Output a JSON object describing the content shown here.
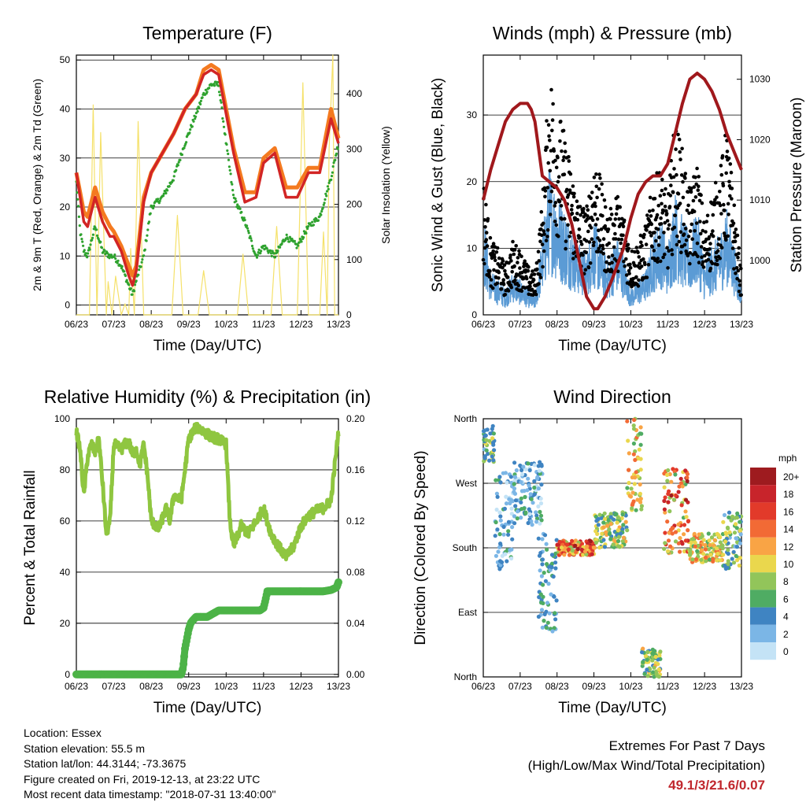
{
  "chart_data": [
    {
      "id": "temperature",
      "type": "line",
      "title": "Temperature (F)",
      "xlabel": "Time (Day/UTC)",
      "ylabel": "2m & 9m T (Red, Orange) & 2m Td (Green)",
      "ylabel_right": "Solar Insolation (Yellow)",
      "x_ticks": [
        "06/23",
        "07/23",
        "08/23",
        "09/23",
        "10/23",
        "11/23",
        "12/23",
        "13/23"
      ],
      "xlim": [
        6,
        13
      ],
      "ylim": [
        -2,
        51
      ],
      "y_ticks": [
        0,
        10,
        20,
        30,
        40,
        50
      ],
      "ylim_right": [
        0,
        470
      ],
      "y_ticks_right": [
        0,
        100,
        200,
        300,
        400
      ],
      "series": [
        {
          "color": "#2fa22f",
          "x": [
            6.0,
            6.1,
            6.2,
            6.3,
            6.5,
            6.7,
            6.9,
            7.0,
            7.2,
            7.4,
            7.5,
            7.6,
            7.8,
            8.0,
            8.3,
            8.6,
            8.9,
            9.2,
            9.4,
            9.6,
            9.8,
            10.0,
            10.2,
            10.5,
            10.8,
            11.0,
            11.3,
            11.6,
            11.9,
            12.2,
            12.5,
            12.8,
            13.0
          ],
          "y": [
            25,
            15,
            11,
            10,
            16,
            11,
            10,
            10,
            8,
            4,
            2,
            5,
            10,
            20,
            22,
            26,
            33,
            39,
            43,
            45,
            45,
            33,
            22,
            17,
            10,
            12,
            10,
            14,
            12,
            16,
            18,
            26,
            33
          ]
        },
        {
          "color": "#f47a20",
          "x": [
            6.0,
            6.1,
            6.2,
            6.3,
            6.5,
            6.7,
            6.9,
            7.0,
            7.2,
            7.4,
            7.5,
            7.6,
            7.8,
            8.0,
            8.3,
            8.6,
            8.9,
            9.2,
            9.4,
            9.6,
            9.8,
            10.0,
            10.2,
            10.5,
            10.8,
            11.0,
            11.3,
            11.6,
            11.9,
            12.2,
            12.5,
            12.8,
            13.0
          ],
          "y": [
            27,
            23,
            19,
            18,
            24,
            19,
            16,
            15,
            12,
            8,
            6,
            8,
            22,
            27,
            31,
            35,
            40,
            43,
            48,
            49,
            48,
            40,
            32,
            23,
            23,
            30,
            32,
            24,
            24,
            28,
            28,
            40,
            34
          ]
        },
        {
          "color": "#d22525",
          "x": [
            6.0,
            6.1,
            6.2,
            6.3,
            6.5,
            6.7,
            6.9,
            7.0,
            7.2,
            7.4,
            7.5,
            7.6,
            7.8,
            8.0,
            8.3,
            8.6,
            8.9,
            9.2,
            9.4,
            9.6,
            9.8,
            10.0,
            10.2,
            10.5,
            10.8,
            11.0,
            11.3,
            11.6,
            11.9,
            12.2,
            12.5,
            12.8,
            13.0
          ],
          "y": [
            27,
            22,
            17,
            16,
            22,
            17,
            14,
            14,
            11,
            6,
            4,
            7,
            21,
            27,
            31,
            35,
            40,
            43,
            47,
            48,
            47,
            39,
            31,
            21,
            22,
            29,
            31,
            22,
            22,
            27,
            27,
            38,
            33
          ]
        },
        {
          "color": "#f5e16a",
          "x": [
            6.0,
            6.35,
            6.45,
            6.55,
            6.65,
            6.8,
            6.85,
            6.95,
            7.05,
            7.2,
            7.3,
            7.4,
            7.45,
            7.55,
            7.65,
            7.8,
            8.55,
            8.7,
            8.85,
            9.25,
            9.4,
            9.55,
            10.3,
            10.45,
            10.6,
            11.2,
            11.35,
            11.5,
            11.9,
            12.05,
            12.2,
            12.5,
            12.6,
            12.7,
            12.75,
            12.85,
            12.9,
            13.0
          ],
          "y2": [
            0,
            0,
            380,
            0,
            330,
            0,
            60,
            0,
            70,
            0,
            20,
            0,
            120,
            0,
            350,
            0,
            0,
            180,
            0,
            0,
            80,
            0,
            0,
            110,
            0,
            0,
            160,
            0,
            0,
            420,
            0,
            0,
            150,
            0,
            300,
            470,
            0,
            0
          ]
        }
      ]
    },
    {
      "id": "winds",
      "type": "line",
      "title": "Winds (mph) & Pressure (mb)",
      "xlabel": "Time (Day/UTC)",
      "ylabel": "Sonic Wind & Gust (Blue, Black)",
      "ylabel_right": "Station Pressure (Maroon)",
      "x_ticks": [
        "06/23",
        "07/23",
        "08/23",
        "09/23",
        "10/23",
        "11/23",
        "12/23",
        "13/23"
      ],
      "xlim": [
        6,
        13
      ],
      "ylim": [
        0,
        39
      ],
      "y_ticks": [
        0,
        10,
        20,
        30
      ],
      "ylim_right": [
        991,
        1034
      ],
      "y_ticks_right": [
        1000,
        1010,
        1020,
        1030
      ],
      "series": [
        {
          "color": "#5b9bd5",
          "x": [
            6.0,
            6.2,
            6.4,
            6.6,
            6.8,
            7.0,
            7.2,
            7.4,
            7.6,
            7.8,
            8.0,
            8.2,
            8.4,
            8.6,
            8.8,
            9.0,
            9.2,
            9.4,
            9.6,
            9.8,
            10.0,
            10.2,
            10.4,
            10.6,
            10.8,
            11.0,
            11.2,
            11.4,
            11.6,
            11.8,
            12.0,
            12.2,
            12.4,
            12.6,
            12.8,
            13.0
          ],
          "y": [
            12,
            5,
            4,
            3,
            5,
            4,
            3,
            2,
            9,
            17,
            14,
            12,
            10,
            8,
            7,
            11,
            8,
            6,
            9,
            7,
            3,
            4,
            5,
            9,
            11,
            8,
            14,
            11,
            9,
            12,
            6,
            8,
            9,
            12,
            8,
            3
          ]
        },
        {
          "color": "#000000",
          "x": [
            6.0,
            6.2,
            6.4,
            6.6,
            6.8,
            7.0,
            7.2,
            7.4,
            7.6,
            7.8,
            8.0,
            8.2,
            8.4,
            8.6,
            8.8,
            9.0,
            9.2,
            9.4,
            9.6,
            9.8,
            10.0,
            10.2,
            10.4,
            10.6,
            10.8,
            11.0,
            11.2,
            11.4,
            11.6,
            11.8,
            12.0,
            12.2,
            12.4,
            12.6,
            12.8,
            13.0
          ],
          "y": [
            17,
            9,
            8,
            6,
            9,
            8,
            6,
            5,
            14,
            30,
            26,
            22,
            18,
            14,
            13,
            20,
            16,
            12,
            15,
            13,
            8,
            9,
            11,
            16,
            18,
            14,
            24,
            20,
            15,
            19,
            11,
            15,
            17,
            23,
            14,
            5
          ]
        },
        {
          "color": "#a0181c",
          "x": [
            6.0,
            6.2,
            6.4,
            6.6,
            6.8,
            7.0,
            7.2,
            7.3,
            7.4,
            7.6,
            7.8,
            8.0,
            8.2,
            8.4,
            8.6,
            8.8,
            9.0,
            9.1,
            9.3,
            9.5,
            9.8,
            10.0,
            10.2,
            10.4,
            10.6,
            10.8,
            11.0,
            11.2,
            11.4,
            11.6,
            11.8,
            12.0,
            12.2,
            12.4,
            12.6,
            12.8,
            13.0
          ],
          "y2": [
            1010,
            1015,
            1019,
            1023,
            1025,
            1026,
            1026,
            1025,
            1023,
            1014,
            1013,
            1012,
            1010,
            1006,
            1000,
            994,
            992,
            992,
            994,
            997,
            1002,
            1007,
            1011,
            1013,
            1014,
            1014,
            1016,
            1021,
            1026,
            1030,
            1031,
            1030,
            1028,
            1025,
            1021,
            1018,
            1015
          ]
        }
      ]
    },
    {
      "id": "rh",
      "type": "line",
      "title": "Relative Humidity (%) & Precipitation (in)",
      "xlabel": "Time (Day/UTC)",
      "ylabel": "Percent & Total Rainfall",
      "x_ticks": [
        "06/23",
        "07/23",
        "08/23",
        "09/23",
        "10/23",
        "11/23",
        "12/23",
        "13/23"
      ],
      "xlim": [
        6,
        13
      ],
      "ylim": [
        -1,
        100
      ],
      "y_ticks": [
        0,
        20,
        40,
        60,
        80,
        100
      ],
      "ylim_right": [
        -0.002,
        0.2
      ],
      "y_ticks_right": [
        "0.00",
        "0.04",
        "0.08",
        "0.12",
        "0.16",
        "0.20"
      ],
      "series": [
        {
          "color": "#8fc640",
          "x": [
            6.0,
            6.1,
            6.2,
            6.3,
            6.4,
            6.5,
            6.6,
            6.7,
            6.8,
            6.9,
            7.0,
            7.1,
            7.2,
            7.3,
            7.4,
            7.5,
            7.6,
            7.7,
            7.8,
            7.9,
            8.0,
            8.2,
            8.4,
            8.5,
            8.6,
            8.8,
            9.0,
            9.2,
            9.4,
            9.6,
            9.8,
            10.0,
            10.1,
            10.2,
            10.4,
            10.6,
            10.8,
            11.0,
            11.2,
            11.4,
            11.6,
            11.8,
            12.0,
            12.2,
            12.4,
            12.6,
            12.8,
            13.0
          ],
          "y": [
            95,
            88,
            70,
            85,
            90,
            87,
            92,
            75,
            55,
            60,
            90,
            89,
            88,
            90,
            91,
            86,
            88,
            82,
            90,
            78,
            60,
            57,
            65,
            60,
            70,
            68,
            92,
            97,
            95,
            93,
            92,
            90,
            60,
            50,
            58,
            55,
            60,
            65,
            55,
            50,
            46,
            50,
            58,
            62,
            64,
            65,
            68,
            95
          ]
        },
        {
          "color": "#4cb347",
          "x": [
            6.0,
            6.5,
            7.0,
            7.5,
            8.0,
            8.5,
            8.8,
            8.85,
            8.9,
            9.0,
            9.05,
            9.1,
            9.2,
            9.3,
            9.5,
            9.8,
            10.0,
            10.3,
            10.6,
            10.9,
            11.0,
            11.05,
            11.1,
            11.3,
            11.6,
            11.8,
            12.0,
            12.3,
            12.6,
            12.8,
            12.95,
            13.0
          ],
          "y2": [
            0,
            0,
            0,
            0,
            0,
            0,
            0,
            0.005,
            0.02,
            0.035,
            0.04,
            0.042,
            0.045,
            0.045,
            0.045,
            0.05,
            0.05,
            0.05,
            0.05,
            0.05,
            0.052,
            0.058,
            0.065,
            0.065,
            0.065,
            0.065,
            0.065,
            0.065,
            0.065,
            0.066,
            0.068,
            0.072
          ]
        }
      ]
    },
    {
      "id": "wind_direction",
      "type": "scatter",
      "title": "Wind Direction",
      "xlabel": "Time (Day/UTC)",
      "ylabel": "Direction (Colored By Speed)",
      "x_ticks": [
        "06/23",
        "07/23",
        "08/23",
        "09/23",
        "10/23",
        "11/23",
        "12/23",
        "13/23"
      ],
      "xlim": [
        6,
        13
      ],
      "y_ticks": [
        "North",
        "West",
        "South",
        "East",
        "North"
      ],
      "ylim": [
        0,
        360
      ],
      "colorbar": {
        "unit": "mph",
        "labels": [
          "20+",
          "18",
          "16",
          "14",
          "12",
          "10",
          "8",
          "6",
          "4",
          "2",
          "0"
        ],
        "colors": [
          "#9e1b1f",
          "#c8242b",
          "#e23a2a",
          "#f26a35",
          "#f9a445",
          "#ead74d",
          "#92c55a",
          "#4fac63",
          "#3f84c2",
          "#7bb6e6",
          "#c4e3f6"
        ]
      },
      "clusters": [
        {
          "x": [
            6.0,
            6.3
          ],
          "dir": [
            300,
            350
          ],
          "speed": [
            2,
            10
          ]
        },
        {
          "x": [
            6.3,
            6.8
          ],
          "dir": [
            150,
            290
          ],
          "speed": [
            0,
            6
          ]
        },
        {
          "x": [
            6.8,
            7.6
          ],
          "dir": [
            210,
            300
          ],
          "speed": [
            0,
            6
          ]
        },
        {
          "x": [
            7.5,
            8.0
          ],
          "dir": [
            60,
            200
          ],
          "speed": [
            2,
            7
          ]
        },
        {
          "x": [
            8.0,
            9.0
          ],
          "dir": [
            170,
            190
          ],
          "speed": [
            8,
            20
          ]
        },
        {
          "x": [
            9.0,
            9.9
          ],
          "dir": [
            180,
            230
          ],
          "speed": [
            4,
            12
          ]
        },
        {
          "x": [
            9.9,
            10.3
          ],
          "dir": [
            230,
            360
          ],
          "speed": [
            6,
            14
          ]
        },
        {
          "x": [
            10.3,
            10.8
          ],
          "dir": [
            0,
            40
          ],
          "speed": [
            4,
            12
          ]
        },
        {
          "x": [
            10.9,
            11.6
          ],
          "dir": [
            170,
            290
          ],
          "speed": [
            6,
            20
          ]
        },
        {
          "x": [
            11.6,
            12.5
          ],
          "dir": [
            160,
            200
          ],
          "speed": [
            6,
            14
          ]
        },
        {
          "x": [
            12.5,
            13.0
          ],
          "dir": [
            150,
            230
          ],
          "speed": [
            2,
            10
          ]
        }
      ]
    }
  ],
  "footer": {
    "location": "Location: Essex",
    "elevation": "Station elevation: 55.5 m",
    "latlon": "Station lat/lon: 44.3144; -73.3675",
    "created": "Figure created on Fri, 2019-12-13, at 23:22 UTC",
    "recent": "Most recent data timestamp: \"2018-07-31 13:40:00\"",
    "extremes_line1": "Extremes For Past 7 Days",
    "extremes_line2": "(High/Low/Max Wind/Total Precipitation)",
    "extremes_values": "49.1/3/21.6/0.07"
  }
}
